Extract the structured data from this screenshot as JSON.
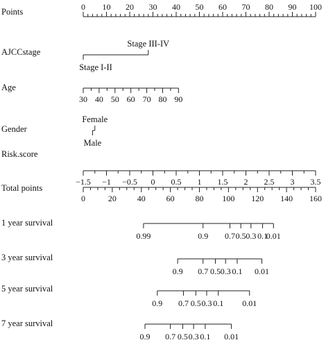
{
  "chart_data": {
    "type": "nomogram",
    "rows": [
      {
        "label": "Points",
        "scale": "linear",
        "range": [
          0,
          100
        ],
        "major": [
          0,
          10,
          20,
          30,
          40,
          50,
          60,
          70,
          80,
          90,
          100
        ],
        "minor_step": 2,
        "labels_above": true,
        "tick_labels": [
          "0",
          "10",
          "20",
          "30",
          "40",
          "50",
          "60",
          "70",
          "80",
          "90",
          "100"
        ]
      },
      {
        "label": "AJCCstage",
        "scale": "categorical",
        "categories": [
          {
            "name": "Stage III-IV",
            "points": 28,
            "label_pos": "above"
          },
          {
            "name": "Stage I-II",
            "points": 0,
            "label_pos": "below"
          }
        ]
      },
      {
        "label": "Age",
        "scale": "linear",
        "range": [
          30,
          90
        ],
        "points_range": [
          0,
          41
        ],
        "major": [
          30,
          40,
          50,
          60,
          70,
          80,
          90
        ],
        "minor_step": 5,
        "tick_labels": [
          "30",
          "40",
          "50",
          "60",
          "70",
          "80",
          "90"
        ]
      },
      {
        "label": "Gender",
        "scale": "categorical",
        "categories": [
          {
            "name": "Female",
            "points": 5,
            "label_pos": "above"
          },
          {
            "name": "Male",
            "points": 4,
            "label_pos": "below"
          }
        ]
      },
      {
        "label": "Risk.score",
        "scale": "linear",
        "range": [
          -1.5,
          3.5
        ],
        "points_range": [
          0,
          100
        ],
        "major": [
          -1.5,
          -1,
          -0.5,
          0,
          0.5,
          1,
          1.5,
          2,
          2.5,
          3,
          3.5
        ],
        "minor_step": 0.25,
        "tick_labels": [
          "−1.5",
          "−1",
          "−0.5",
          "0",
          "0.5",
          "1",
          "1.5",
          "2",
          "2.5",
          "3",
          "3.5"
        ]
      },
      {
        "label": "Total points",
        "scale": "linear",
        "range": [
          0,
          160
        ],
        "points_range": [
          0,
          100
        ],
        "major": [
          0,
          20,
          40,
          60,
          80,
          100,
          120,
          140,
          160
        ],
        "minor_step": 5,
        "tick_labels": [
          "0",
          "20",
          "40",
          "60",
          "80",
          "100",
          "120",
          "140",
          "160"
        ]
      },
      {
        "label": "1 year survival",
        "scale": "survival",
        "line_total": [
          41.5,
          131
        ],
        "ticks": [
          {
            "value": "0.99",
            "total": 41.5
          },
          {
            "value": "0.9",
            "total": 82.5
          },
          {
            "value": "0.7",
            "total": 101
          },
          {
            "value": "0.5",
            "total": 108.5
          },
          {
            "value": "0.3",
            "total": 115.5
          },
          {
            "value": "0.1",
            "total": 123.5
          },
          {
            "value": "0.01",
            "total": 131
          }
        ]
      },
      {
        "label": "3 year survival",
        "scale": "survival",
        "line_total": [
          65,
          123
        ],
        "ticks": [
          {
            "value": "0.9",
            "total": 65
          },
          {
            "value": "0.7",
            "total": 82.5
          },
          {
            "value": "0.5",
            "total": 91
          },
          {
            "value": "0.3",
            "total": 98
          },
          {
            "value": "0.1",
            "total": 106
          },
          {
            "value": "0.01",
            "total": 123
          }
        ]
      },
      {
        "label": "5 year survival",
        "scale": "survival",
        "line_total": [
          51,
          114.5
        ],
        "ticks": [
          {
            "value": "0.9",
            "total": 51
          },
          {
            "value": "0.7",
            "total": 69
          },
          {
            "value": "0.5",
            "total": 77.5
          },
          {
            "value": "0.3",
            "total": 85
          },
          {
            "value": "0.1",
            "total": 93
          },
          {
            "value": "0.01",
            "total": 114.5
          }
        ]
      },
      {
        "label": "7 year survival",
        "scale": "survival",
        "line_total": [
          42.5,
          102
        ],
        "ticks": [
          {
            "value": "0.9",
            "total": 42.5
          },
          {
            "value": "0.7",
            "total": 60
          },
          {
            "value": "0.5",
            "total": 68.5
          },
          {
            "value": "0.3",
            "total": 76
          },
          {
            "value": "0.1",
            "total": 84
          },
          {
            "value": "0.01",
            "total": 102
          }
        ]
      }
    ]
  }
}
